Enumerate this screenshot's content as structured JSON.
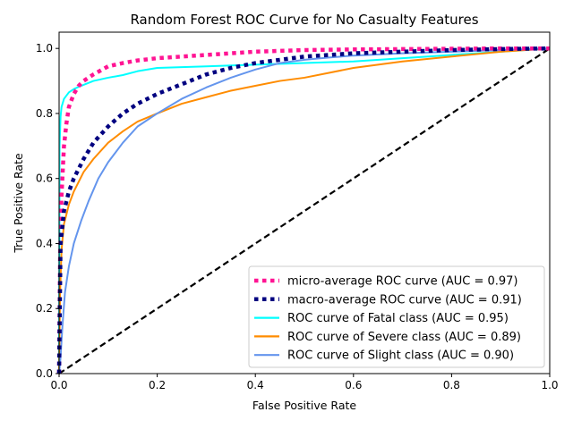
{
  "chart_data": {
    "type": "line",
    "title": "Random Forest ROC Curve for No Casualty Features",
    "xlabel": "False Positive Rate",
    "ylabel": "True Positive Rate",
    "xlim": [
      0.0,
      1.0
    ],
    "ylim": [
      0.0,
      1.05
    ],
    "grid": false,
    "legend_position": "lower-right",
    "xticks": [
      "0.0",
      "0.2",
      "0.4",
      "0.6",
      "0.8",
      "1.0"
    ],
    "yticks": [
      "0.0",
      "0.2",
      "0.4",
      "0.6",
      "0.8",
      "1.0"
    ],
    "series": [
      {
        "name": "micro-average ROC curve (AUC = 0.97)",
        "color": "#ff1493",
        "style": "dotted",
        "x": [
          0.0,
          0.002,
          0.005,
          0.01,
          0.015,
          0.02,
          0.03,
          0.04,
          0.05,
          0.07,
          0.1,
          0.13,
          0.16,
          0.2,
          0.25,
          0.3,
          0.4,
          0.5,
          0.6,
          0.7,
          0.8,
          0.9,
          1.0
        ],
        "y": [
          0.0,
          0.35,
          0.55,
          0.7,
          0.77,
          0.82,
          0.86,
          0.885,
          0.9,
          0.92,
          0.945,
          0.955,
          0.963,
          0.97,
          0.975,
          0.98,
          0.99,
          0.995,
          0.997,
          0.998,
          0.999,
          1.0,
          1.0
        ]
      },
      {
        "name": "macro-average ROC curve (AUC = 0.91)",
        "color": "#000080",
        "style": "dotted",
        "x": [
          0.0,
          0.003,
          0.01,
          0.02,
          0.03,
          0.05,
          0.07,
          0.1,
          0.13,
          0.16,
          0.2,
          0.25,
          0.3,
          0.35,
          0.4,
          0.45,
          0.5,
          0.6,
          0.7,
          0.8,
          0.9,
          1.0
        ],
        "y": [
          0.0,
          0.4,
          0.5,
          0.56,
          0.6,
          0.66,
          0.71,
          0.76,
          0.8,
          0.83,
          0.86,
          0.89,
          0.92,
          0.94,
          0.955,
          0.965,
          0.975,
          0.985,
          0.99,
          0.995,
          0.998,
          1.0
        ]
      },
      {
        "name": "ROC curve of Fatal class (AUC = 0.95)",
        "color": "#00ffff",
        "style": "solid",
        "x": [
          0.0,
          0.001,
          0.003,
          0.005,
          0.01,
          0.015,
          0.02,
          0.03,
          0.04,
          0.05,
          0.07,
          0.1,
          0.13,
          0.16,
          0.2,
          0.3,
          0.4,
          0.5,
          0.6,
          0.7,
          0.8,
          0.9,
          1.0
        ],
        "y": [
          0.0,
          0.7,
          0.79,
          0.82,
          0.845,
          0.855,
          0.865,
          0.875,
          0.882,
          0.888,
          0.9,
          0.91,
          0.918,
          0.93,
          0.94,
          0.945,
          0.95,
          0.955,
          0.96,
          0.97,
          0.98,
          0.99,
          1.0
        ]
      },
      {
        "name": "ROC curve of Severe class (AUC = 0.89)",
        "color": "#ff8c00",
        "style": "solid",
        "x": [
          0.0,
          0.002,
          0.005,
          0.01,
          0.02,
          0.03,
          0.05,
          0.07,
          0.1,
          0.13,
          0.16,
          0.2,
          0.25,
          0.3,
          0.35,
          0.4,
          0.45,
          0.5,
          0.55,
          0.6,
          0.7,
          0.8,
          0.9,
          1.0
        ],
        "y": [
          0.0,
          0.25,
          0.38,
          0.46,
          0.52,
          0.56,
          0.62,
          0.66,
          0.71,
          0.745,
          0.775,
          0.8,
          0.83,
          0.85,
          0.87,
          0.885,
          0.9,
          0.91,
          0.925,
          0.94,
          0.96,
          0.975,
          0.99,
          1.0
        ]
      },
      {
        "name": "ROC curve of Slight class (AUC = 0.90)",
        "color": "#6495ed",
        "style": "solid",
        "x": [
          0.0,
          0.003,
          0.007,
          0.012,
          0.02,
          0.03,
          0.045,
          0.06,
          0.08,
          0.1,
          0.13,
          0.16,
          0.2,
          0.25,
          0.3,
          0.35,
          0.4,
          0.45,
          0.5,
          0.55,
          0.6,
          0.7,
          0.8,
          0.9,
          1.0
        ],
        "y": [
          0.0,
          0.05,
          0.15,
          0.25,
          0.33,
          0.4,
          0.47,
          0.53,
          0.6,
          0.65,
          0.71,
          0.76,
          0.8,
          0.845,
          0.88,
          0.91,
          0.935,
          0.955,
          0.965,
          0.972,
          0.978,
          0.985,
          0.99,
          0.995,
          1.0
        ]
      }
    ],
    "reference_line": {
      "x": [
        0.0,
        1.0
      ],
      "y": [
        0.0,
        1.0
      ],
      "color": "#000000",
      "style": "dashed"
    }
  }
}
